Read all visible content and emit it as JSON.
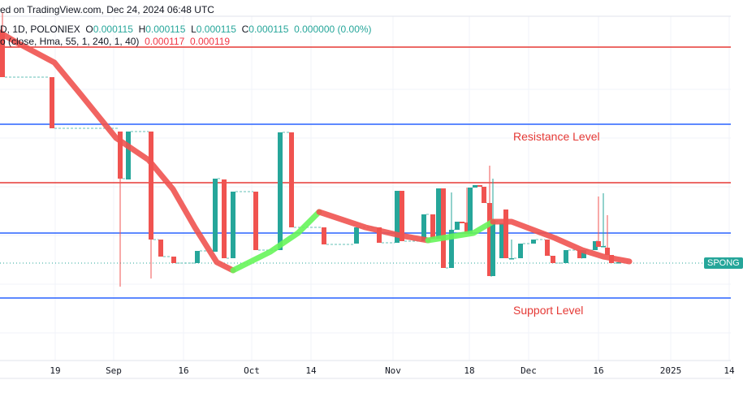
{
  "header": {
    "published": "ed on TradingView.com, Dec 24, 2024 06:48 UTC",
    "symbol": "D, 1D, POLONIEX",
    "ohlc": {
      "o_label": "O",
      "o": "0.000115",
      "h_label": "H",
      "h": "0.000115",
      "l_label": "L",
      "l": "0.000115",
      "c_label": "C",
      "c": "0.000115",
      "change": "0.000000 (0.00%)"
    },
    "indicator": {
      "label": "o (close, Hma, 55, 1, 240, 1, 40)",
      "v1": "0.000117",
      "v2": "0.000119"
    }
  },
  "annotations": {
    "resistance": "Resistance Level",
    "support": "Support Level"
  },
  "price_tag": "SPONG",
  "x_axis": {
    "ticks": [
      "19",
      "Sep",
      "16",
      "Oct",
      "14",
      "Nov",
      "18",
      "Dec",
      "16",
      "2025",
      "14"
    ]
  },
  "colors": {
    "up": "#26a69a",
    "down": "#f05350",
    "hma_down": "#f05350",
    "hma_up": "#66f55a",
    "resistance_line": "#e53935",
    "support_line": "#2962ff"
  }
}
